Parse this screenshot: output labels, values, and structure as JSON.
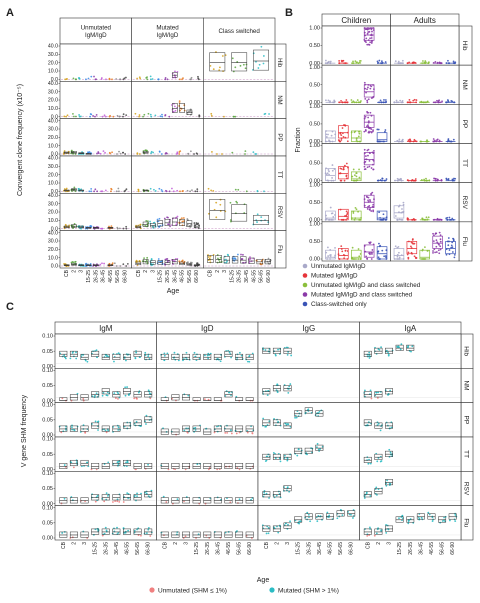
{
  "figure": {
    "panel_letters": [
      "A",
      "B",
      "C"
    ]
  },
  "chart_data": [
    {
      "panel": "A",
      "type": "box",
      "ylabel": "Convergent clone frequency (x10⁻⁵)",
      "xlabel": "Age",
      "facet_columns": [
        "Unmutated IgM/IgD",
        "Mutated IgM/IgD",
        "Class switched"
      ],
      "facet_rows": [
        "Hib",
        "NM",
        "PP",
        "TT",
        "RSV",
        "Flu"
      ],
      "y_ticks": [
        "40.0",
        "30.0",
        "20.0",
        "10.0",
        "0.0"
      ],
      "ylim": [
        0,
        40
      ],
      "x_ticks": [
        "CB",
        "2",
        "3",
        "15-25",
        "26-35",
        "36-45",
        "46-55",
        "56-65",
        "66-90"
      ],
      "medians": {
        "Unmutated IgM/IgD": {
          "Hib": [
            0,
            0,
            0,
            0,
            0,
            0,
            0,
            0,
            0
          ],
          "NM": [
            0,
            0,
            0,
            0,
            0,
            0,
            0,
            0,
            0
          ],
          "PP": [
            1.5,
            2,
            1,
            0.5,
            0,
            0,
            0,
            0,
            0
          ],
          "TT": [
            1,
            2,
            1,
            0,
            0,
            0,
            0,
            0,
            0
          ],
          "RSV": [
            2,
            3,
            2,
            1,
            1,
            0,
            1,
            0,
            0
          ],
          "Flu": [
            1,
            2,
            1,
            1,
            1,
            0,
            1,
            0,
            0
          ]
        },
        "Mutated IgM/IgD": {
          "Hib": [
            0,
            0,
            0,
            0,
            0,
            5,
            0,
            0,
            0
          ],
          "NM": [
            0,
            0,
            0,
            0,
            0,
            10,
            10,
            5,
            0
          ],
          "PP": [
            0,
            2,
            0,
            0,
            0,
            0,
            0,
            0,
            0
          ],
          "TT": [
            0,
            1,
            0,
            0,
            0,
            0,
            0,
            0,
            0
          ],
          "RSV": [
            2,
            5,
            4,
            6,
            7,
            8,
            7,
            6,
            3
          ],
          "Flu": [
            3,
            5,
            4,
            4,
            4,
            5,
            3,
            2,
            1
          ]
        },
        "Class switched": {
          "Hib": [
            20,
            20,
            22
          ],
          "NM": [
            0,
            0,
            0
          ],
          "PP": [
            0,
            0,
            0
          ],
          "TT": [
            0,
            0,
            0
          ],
          "RSV": [
            22,
            18,
            10
          ],
          "Flu": [
            8,
            8,
            7,
            7,
            7,
            6,
            5,
            5
          ]
        }
      }
    },
    {
      "panel": "B",
      "type": "box",
      "ylabel": "Fraction",
      "facet_columns": [
        "Children",
        "Adults"
      ],
      "facet_rows": [
        "Hib",
        "NM",
        "PP",
        "TT",
        "RSV",
        "Flu"
      ],
      "y_ticks": [
        "1.00",
        "0.50",
        "0.00"
      ],
      "ylim": [
        0,
        1
      ],
      "legend": [
        {
          "label": "Unmutated IgM/IgD",
          "color": "#a9a9c9"
        },
        {
          "label": "Mutated IgM/IgD",
          "color": "#e6343a"
        },
        {
          "label": "Unmutated IgM/IgD and class switched",
          "color": "#8bbf3c"
        },
        {
          "label": "Mutated IgM/IgD and class switched",
          "color": "#8b3aa8"
        },
        {
          "label": "Class-switched only",
          "color": "#3a54b6"
        }
      ],
      "medians": {
        "Children": {
          "Hib": [
            0,
            0,
            0,
            0.8,
            0
          ],
          "NM": [
            0,
            0,
            0,
            0.3,
            0
          ],
          "PP": [
            0.1,
            0.25,
            0.1,
            0.55,
            0.05
          ],
          "TT": [
            0.15,
            0.2,
            0.05,
            0.6,
            0
          ],
          "RSV": [
            0.05,
            0.1,
            0.05,
            0.5,
            0.05
          ],
          "Flu": [
            0.05,
            0.1,
            0.05,
            0.2,
            0.15
          ]
        },
        "Adults": {
          "Hib": [
            0,
            0,
            0,
            0,
            0
          ],
          "NM": [
            0,
            0,
            0,
            0,
            0
          ],
          "PP": [
            0,
            0,
            0,
            0,
            0
          ],
          "TT": [
            0,
            0,
            0,
            0,
            0
          ],
          "RSV": [
            0.2,
            0,
            0,
            0,
            0
          ],
          "Flu": [
            0.1,
            0.3,
            0.05,
            0.45,
            0.3
          ]
        }
      }
    },
    {
      "panel": "C",
      "type": "box",
      "ylabel": "V gene SHM frequency",
      "xlabel": "Age",
      "facet_columns": [
        "IgM",
        "IgD",
        "IgG",
        "IgA"
      ],
      "facet_rows": [
        "Hib",
        "NM",
        "PP",
        "TT",
        "RSV",
        "Flu"
      ],
      "y_ticks": [
        "0.10",
        "0.05",
        "0.00"
      ],
      "ylim": [
        0,
        0.1
      ],
      "x_ticks": [
        "CB",
        "2",
        "3",
        "15-25",
        "26-35",
        "36-45",
        "46-55",
        "56-65",
        "66-90"
      ],
      "legend": [
        {
          "label": "Unmutated (SHM ≤ 1%)",
          "color": "#f08080"
        },
        {
          "label": "Mutated (SHM > 1%)",
          "color": "#2bbcc4"
        }
      ],
      "medians": {
        "IgM": {
          "Hib": [
            0.04,
            0.04,
            0.03,
            0.04,
            0.03,
            0.03,
            0.03,
            0.04,
            0.03
          ],
          "NM": [
            0.0,
            0.01,
            0.01,
            0.02,
            0.03,
            0.02,
            0.03,
            0.02,
            0.02
          ],
          "PP": [
            0.02,
            0.02,
            0.02,
            0.03,
            0.02,
            0.02,
            0.03,
            0.04,
            0.05
          ],
          "TT": [
            0.01,
            0.02,
            0.02,
            0.01,
            0.01,
            0.02,
            0.02,
            0.01,
            0.01
          ],
          "RSV": [
            0.01,
            0.01,
            0.01,
            0.02,
            0.02,
            0.02,
            0.02,
            0.02,
            0.03
          ],
          "Flu": [
            0.01,
            0.01,
            0.01,
            0.02,
            0.02,
            0.02,
            0.02,
            0.02,
            0.02
          ]
        },
        "IgD": {
          "Hib": [
            0.03,
            0.03,
            0.03,
            0.03,
            0.03,
            0.03,
            0.04,
            0.03,
            0.03
          ],
          "NM": [
            0.0,
            0.01,
            0.01,
            0.0,
            0.0,
            0.0,
            0.02,
            0.0,
            0.0
          ],
          "PP": [
            0.01,
            0.01,
            0.02,
            0.02,
            0.01,
            0.02,
            0.02,
            0.02,
            0.02
          ],
          "TT": [
            0.01,
            0.01,
            0.01,
            0.01,
            0.01,
            0.01,
            0.01,
            0.01,
            0.01
          ],
          "RSV": [
            0.01,
            0.01,
            0.01,
            0.01,
            0.01,
            0.01,
            0.01,
            0.01,
            0.01
          ],
          "Flu": [
            0.01,
            0.01,
            0.01,
            0.01,
            0.01,
            0.01,
            0.01,
            0.01,
            0.01
          ]
        },
        "IgG": {
          "Hib": [
            0.05,
            0.05,
            0.05
          ],
          "NM": [
            0.03,
            0.04,
            0.04
          ],
          "PP": [
            0.04,
            0.04,
            0.03,
            0.07,
            0.08,
            0.07
          ],
          "TT": [
            0.04,
            0.04,
            0.04,
            0.06,
            0.06,
            0.07
          ],
          "RSV": [
            0.03,
            0.03,
            0.05
          ],
          "Flu": [
            0.03,
            0.03,
            0.04,
            0.06,
            0.07,
            0.07,
            0.07,
            0.08,
            0.08
          ]
        },
        "IgA": {
          "Hib": [
            0.04,
            0.05,
            0.05,
            0.06,
            0.06
          ],
          "NM": [
            0.02,
            0.02,
            0.03
          ],
          "PP": [
            0.04,
            0.03,
            0.03
          ],
          "TT": [
            0.03,
            0.04,
            0.05
          ],
          "RSV": [
            0.03,
            0.04,
            0.07
          ],
          "Flu": [
            0.02,
            0.02,
            0.03,
            0.06,
            0.06,
            0.07,
            0.07,
            0.06,
            0.07
          ]
        }
      }
    }
  ]
}
